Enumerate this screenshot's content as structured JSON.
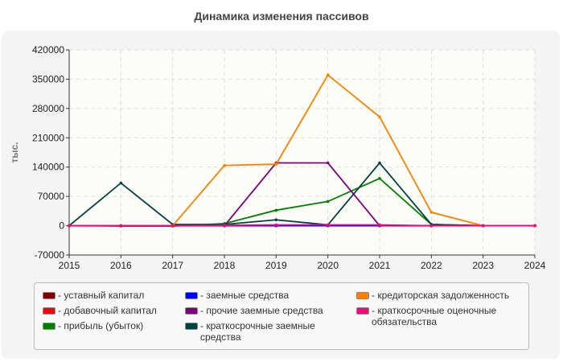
{
  "chart_data": {
    "type": "line",
    "title": "Динамика изменения пассивов",
    "ylabel": "тыс.",
    "xlabel": "",
    "x": [
      2015,
      2016,
      2017,
      2018,
      2019,
      2020,
      2021,
      2022,
      2023,
      2024
    ],
    "ylim": [
      -70000,
      420000
    ],
    "yticks": [
      "420000",
      "350000",
      "280000",
      "210000",
      "140000",
      "70000",
      "0",
      "-70000"
    ],
    "xticks": [
      "2015",
      "2016",
      "2017",
      "2018",
      "2019",
      "2020",
      "2021",
      "2022",
      "2023",
      "2024"
    ],
    "grid": true,
    "legend_placement": "bottom",
    "series": [
      {
        "name": "уставный капитал",
        "color": "#800000",
        "values": [
          0,
          0,
          0,
          0,
          0,
          0,
          0,
          0,
          0,
          0
        ]
      },
      {
        "name": "добавочный капитал",
        "color": "#ff0000",
        "values": [
          0,
          0,
          0,
          1000,
          1000,
          1000,
          1000,
          0,
          0,
          0
        ]
      },
      {
        "name": "прибыль (убыток)",
        "color": "#008000",
        "values": [
          0,
          -1000,
          -1000,
          5000,
          37000,
          58000,
          113000,
          3000,
          0,
          0
        ]
      },
      {
        "name": "заемные средства",
        "color": "#0000ff",
        "values": [
          0,
          0,
          0,
          0,
          0,
          0,
          0,
          0,
          0,
          0
        ]
      },
      {
        "name": "прочие заемные средства",
        "color": "#800080",
        "values": [
          0,
          0,
          0,
          0,
          150000,
          150000,
          0,
          0,
          0,
          0
        ]
      },
      {
        "name": "краткосрочные заемные средства",
        "color": "#004040",
        "values": [
          0,
          102000,
          3000,
          3000,
          14000,
          2000,
          150000,
          3000,
          0,
          0
        ]
      },
      {
        "name": "кредиторская задолженность",
        "color": "#ff8000",
        "values": [
          0,
          0,
          0,
          144000,
          147000,
          360000,
          260000,
          32000,
          0,
          0
        ]
      },
      {
        "name": "краткосрочные оценочные обязательства",
        "color": "#ff0080",
        "values": [
          0,
          0,
          0,
          1000,
          2000,
          2000,
          2000,
          0,
          0,
          0
        ]
      }
    ]
  }
}
